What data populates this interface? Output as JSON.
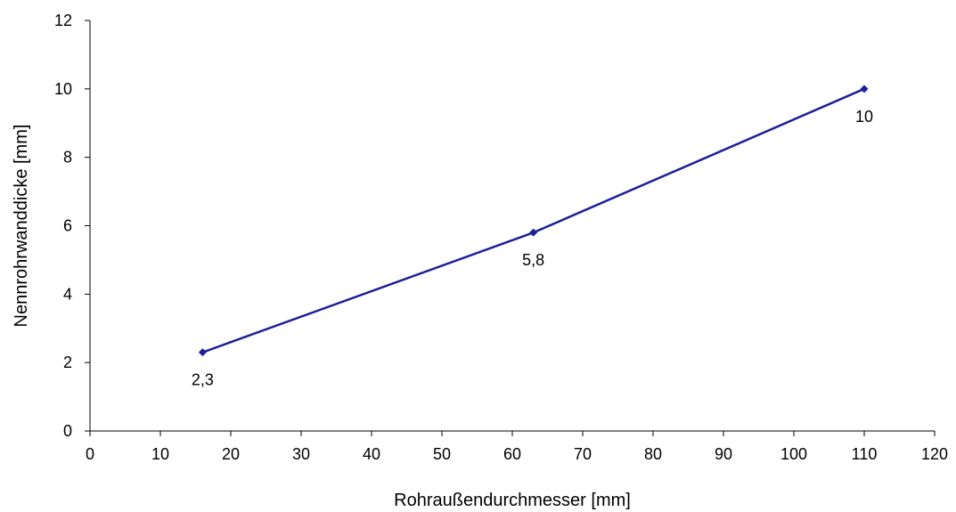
{
  "chart_data": {
    "type": "line",
    "title": "",
    "xlabel": "Rohraußendurchmesser  [mm]",
    "ylabel": "Nennrohrwanddicke  [mm]",
    "xlim": [
      0,
      120
    ],
    "ylim": [
      0,
      12
    ],
    "x_ticks": [
      0,
      10,
      20,
      30,
      40,
      50,
      60,
      70,
      80,
      90,
      100,
      110,
      120
    ],
    "y_ticks": [
      0,
      2,
      4,
      6,
      8,
      10,
      12
    ],
    "grid": false,
    "legend": "none",
    "series": [
      {
        "x": [
          16,
          63,
          110
        ],
        "values": [
          2.3,
          5.8,
          10
        ],
        "data_labels": [
          "2,3",
          "5,8",
          "10"
        ],
        "color": "#1f1f99"
      }
    ]
  }
}
